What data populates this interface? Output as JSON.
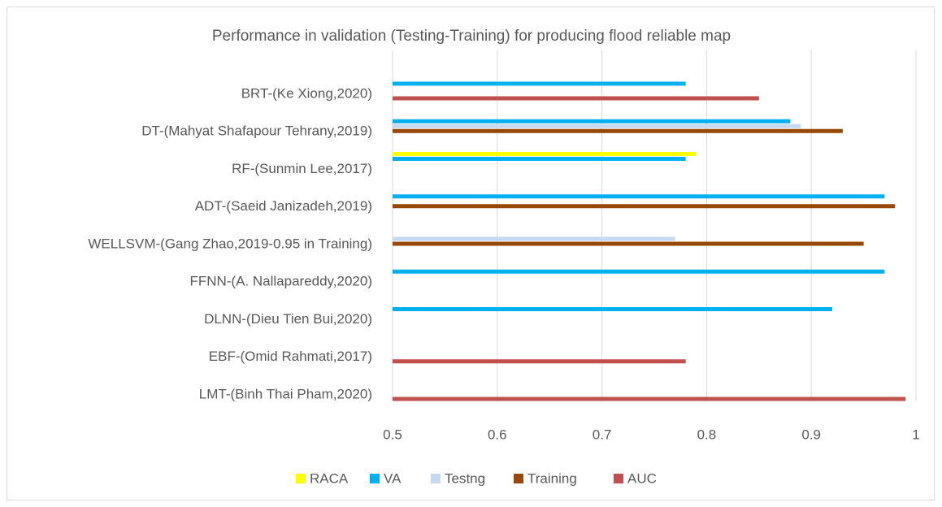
{
  "chart_data": {
    "type": "barh",
    "title": "Performance in validation (Testing-Training) for producing flood reliable map",
    "categories": [
      "BRT-(Ke Xiong,2020)",
      "DT-(Mahyat Shafapour Tehrany,2019)",
      "RF-(Sunmin Lee,2017)",
      "ADT-(Saeid Janizadeh,2019)",
      "WELLSVM-(Gang Zhao,2019-0.95 in Training)",
      "FFNN-(A. Nallapareddy,2020)",
      "DLNN-(Dieu Tien Bui,2020)",
      "EBF-(Omid Rahmati,2017)",
      "LMT-(Binh Thai Pham,2020)"
    ],
    "series": [
      {
        "name": "RACA",
        "color": "#ffff00",
        "values": [
          null,
          null,
          0.79,
          null,
          null,
          null,
          null,
          null,
          null
        ]
      },
      {
        "name": "VA",
        "color": "#00b0f0",
        "values": [
          0.78,
          0.88,
          0.78,
          0.97,
          null,
          0.97,
          0.92,
          null,
          null
        ]
      },
      {
        "name": "Testng",
        "color": "#c6d9f1",
        "values": [
          null,
          0.89,
          null,
          null,
          0.77,
          null,
          null,
          null,
          null
        ]
      },
      {
        "name": "Training",
        "color": "#984806",
        "values": [
          null,
          0.93,
          null,
          0.98,
          0.95,
          null,
          null,
          null,
          null
        ]
      },
      {
        "name": "AUC",
        "color": "#c0504d",
        "values": [
          0.85,
          null,
          null,
          null,
          null,
          null,
          null,
          0.78,
          0.99
        ]
      }
    ],
    "xlim": [
      0.5,
      1
    ],
    "xticks": [
      0.5,
      0.6,
      0.7,
      0.8,
      0.9,
      1
    ],
    "grid": true,
    "legend": "bottom"
  }
}
